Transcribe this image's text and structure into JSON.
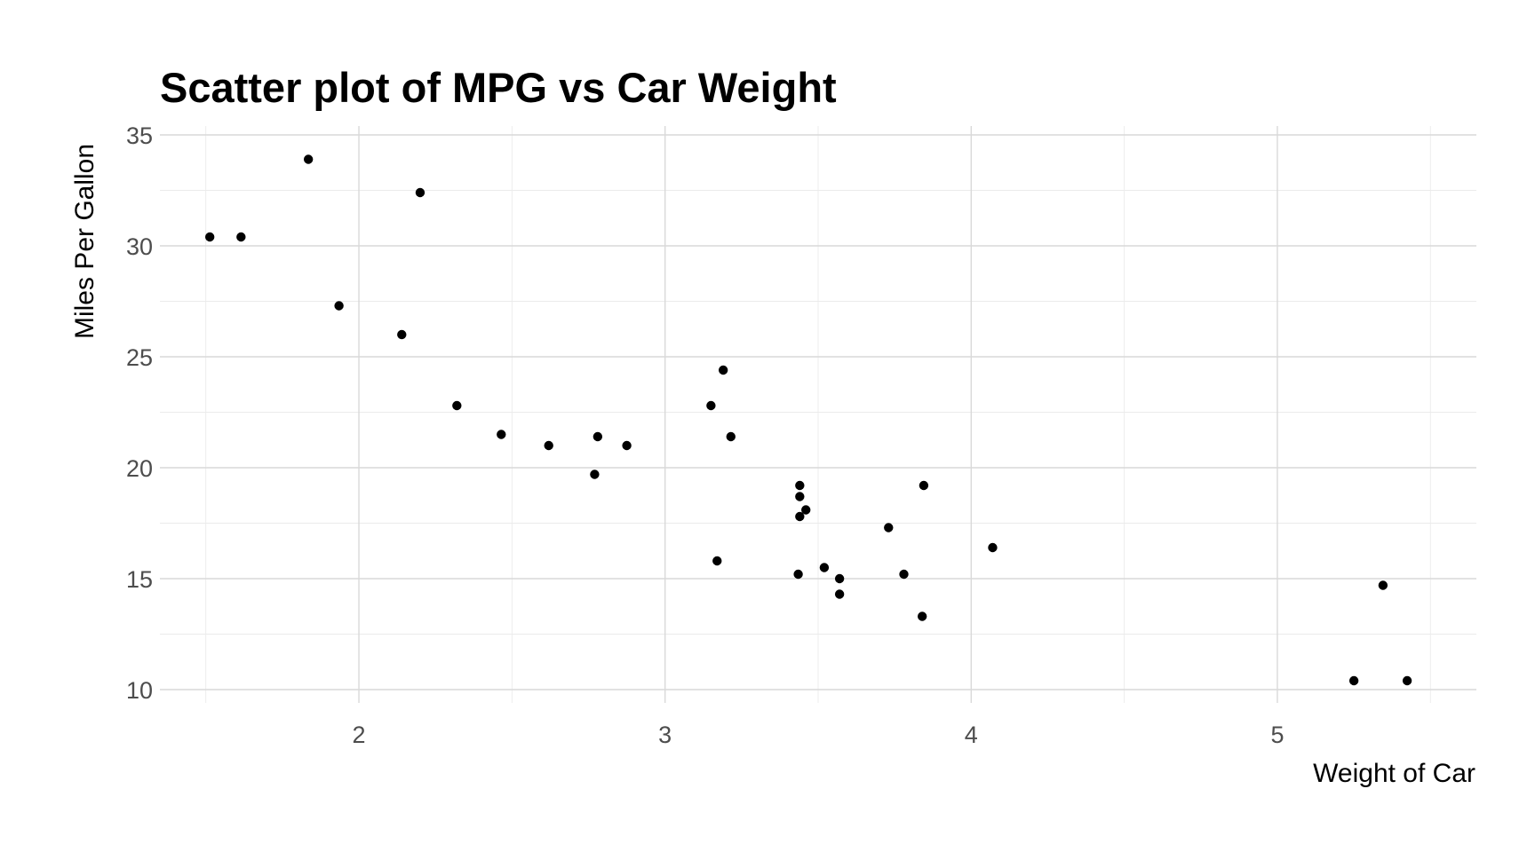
{
  "chart_data": {
    "type": "scatter",
    "title": "Scatter plot of MPG vs Car Weight",
    "xlabel": "Weight of Car",
    "ylabel": "Miles Per Gallon",
    "xlim": [
      1.35,
      5.65
    ],
    "ylim": [
      9.4,
      35.4
    ],
    "x_ticks": [
      2,
      3,
      4,
      5
    ],
    "x_tick_labels": [
      "2",
      "3",
      "4",
      "5"
    ],
    "y_ticks": [
      10,
      15,
      20,
      25,
      30,
      35
    ],
    "y_tick_labels": [
      "10",
      "15",
      "20",
      "25",
      "30",
      "35"
    ],
    "x_minor_ticks": [
      1.5,
      2.5,
      3.5,
      4.5,
      5.5
    ],
    "y_minor_ticks": [
      12.5,
      17.5,
      22.5,
      27.5,
      32.5
    ],
    "grid": true,
    "legend": "none",
    "point_color": "#000000",
    "points": [
      {
        "x": 2.62,
        "y": 21.0
      },
      {
        "x": 2.875,
        "y": 21.0
      },
      {
        "x": 2.32,
        "y": 22.8
      },
      {
        "x": 3.215,
        "y": 21.4
      },
      {
        "x": 3.44,
        "y": 18.7
      },
      {
        "x": 3.46,
        "y": 18.1
      },
      {
        "x": 3.57,
        "y": 14.3
      },
      {
        "x": 3.19,
        "y": 24.4
      },
      {
        "x": 3.15,
        "y": 22.8
      },
      {
        "x": 3.44,
        "y": 19.2
      },
      {
        "x": 3.44,
        "y": 17.8
      },
      {
        "x": 4.07,
        "y": 16.4
      },
      {
        "x": 3.73,
        "y": 17.3
      },
      {
        "x": 3.78,
        "y": 15.2
      },
      {
        "x": 5.25,
        "y": 10.4
      },
      {
        "x": 5.424,
        "y": 10.4
      },
      {
        "x": 5.345,
        "y": 14.7
      },
      {
        "x": 2.2,
        "y": 32.4
      },
      {
        "x": 1.615,
        "y": 30.4
      },
      {
        "x": 1.835,
        "y": 33.9
      },
      {
        "x": 2.465,
        "y": 21.5
      },
      {
        "x": 3.52,
        "y": 15.5
      },
      {
        "x": 3.435,
        "y": 15.2
      },
      {
        "x": 3.84,
        "y": 13.3
      },
      {
        "x": 3.845,
        "y": 19.2
      },
      {
        "x": 1.935,
        "y": 27.3
      },
      {
        "x": 2.14,
        "y": 26.0
      },
      {
        "x": 1.513,
        "y": 30.4
      },
      {
        "x": 3.17,
        "y": 15.8
      },
      {
        "x": 2.77,
        "y": 19.7
      },
      {
        "x": 3.57,
        "y": 15.0
      },
      {
        "x": 2.78,
        "y": 21.4
      }
    ]
  }
}
